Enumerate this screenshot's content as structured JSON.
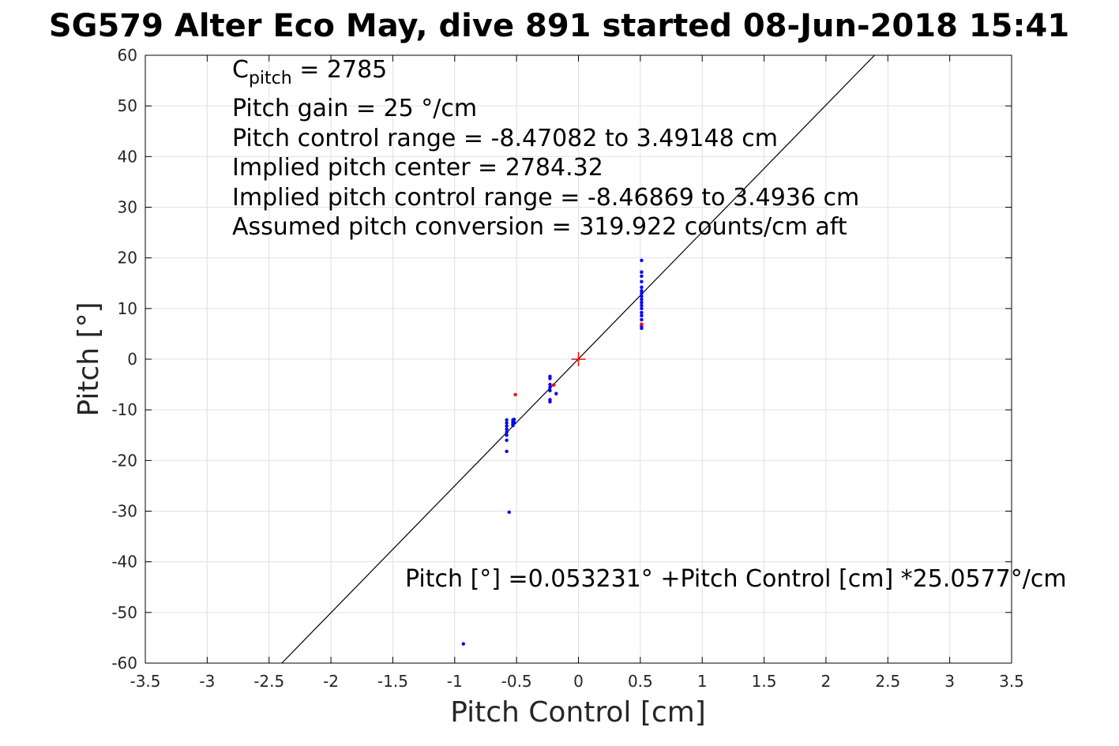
{
  "chart_data": {
    "type": "scatter",
    "title": "SG579 Alter Eco May, dive 891 started 08-Jun-2018 15:41",
    "xlabel": "Pitch Control [cm]",
    "ylabel": "Pitch [°]",
    "xlim": [
      -3.5,
      3.5
    ],
    "ylim": [
      -60,
      60
    ],
    "xticks": [
      -3.5,
      -3,
      -2.5,
      -2,
      -1.5,
      -1,
      -0.5,
      0,
      0.5,
      1,
      1.5,
      2,
      2.5,
      3,
      3.5
    ],
    "xtick_labels": [
      "-3.5",
      "-3",
      "-2.5",
      "-2",
      "-1.5",
      "-1",
      "-0.5",
      "0",
      "0.5",
      "1",
      "1.5",
      "2",
      "2.5",
      "3",
      "3.5"
    ],
    "yticks": [
      -60,
      -50,
      -40,
      -30,
      -20,
      -10,
      0,
      10,
      20,
      30,
      40,
      50,
      60
    ],
    "ytick_labels": [
      "-60",
      "-50",
      "-40",
      "-30",
      "-20",
      "-10",
      "0",
      "10",
      "20",
      "30",
      "40",
      "50",
      "60"
    ],
    "grid": true,
    "annotations": {
      "cpitch_main": "C",
      "cpitch_sub": "pitch",
      "cpitch_value": " = 2785",
      "pitch_gain": "Pitch gain = 25 °/cm",
      "control_range": "Pitch control range = -8.47082 to 3.49148 cm",
      "implied_center": "Implied pitch center = 2784.32",
      "implied_range": "Implied pitch control range = -8.46869 to 3.4936 cm",
      "assumed_conversion": "Assumed pitch conversion = 319.922 counts/cm aft",
      "fit_equation": "Pitch [°] =0.053231° +Pitch Control [cm] *25.0577°/cm"
    },
    "fit_line": {
      "intercept": 0.053231,
      "slope": 25.0577,
      "color": "#000000"
    },
    "center_marker": {
      "x": 0,
      "y": 0,
      "color": "#ff0000"
    },
    "series": [
      {
        "color": "#0000ff",
        "points": [
          [
            -0.58,
            -12.0
          ],
          [
            -0.58,
            -12.6
          ],
          [
            -0.58,
            -13.2
          ],
          [
            -0.58,
            -13.8
          ],
          [
            -0.58,
            -14.4
          ],
          [
            -0.58,
            -15.0
          ],
          [
            -0.58,
            -16.0
          ],
          [
            -0.58,
            -18.2
          ],
          [
            -0.56,
            -30.2
          ],
          [
            -0.53,
            -12.0
          ],
          [
            -0.53,
            -12.4
          ],
          [
            -0.53,
            -12.8
          ],
          [
            -0.53,
            -13.1
          ],
          [
            -0.52,
            -11.9
          ],
          [
            -0.52,
            -12.5
          ],
          [
            -0.23,
            -3.4
          ],
          [
            -0.23,
            -3.8
          ],
          [
            -0.23,
            -5.0
          ],
          [
            -0.23,
            -5.6
          ],
          [
            -0.23,
            -6.2
          ],
          [
            -0.23,
            -8.0
          ],
          [
            -0.23,
            -8.4
          ],
          [
            -0.18,
            -6.8
          ],
          [
            0.51,
            19.5
          ],
          [
            0.51,
            17.2
          ],
          [
            0.51,
            16.4
          ],
          [
            0.51,
            15.3
          ],
          [
            0.51,
            14.2
          ],
          [
            0.51,
            13.5
          ],
          [
            0.51,
            13.0
          ],
          [
            0.51,
            12.4
          ],
          [
            0.51,
            11.8
          ],
          [
            0.51,
            11.2
          ],
          [
            0.51,
            10.6
          ],
          [
            0.51,
            10.0
          ],
          [
            0.51,
            9.2
          ],
          [
            0.51,
            8.6
          ],
          [
            0.51,
            7.8
          ],
          [
            0.51,
            6.5
          ],
          [
            0.51,
            6.1
          ],
          [
            -0.93,
            -56.2
          ]
        ]
      },
      {
        "color": "#ff0000",
        "points": [
          [
            -0.51,
            -7.0
          ],
          [
            -0.2,
            -5.1
          ],
          [
            0.51,
            6.9
          ]
        ]
      }
    ]
  }
}
